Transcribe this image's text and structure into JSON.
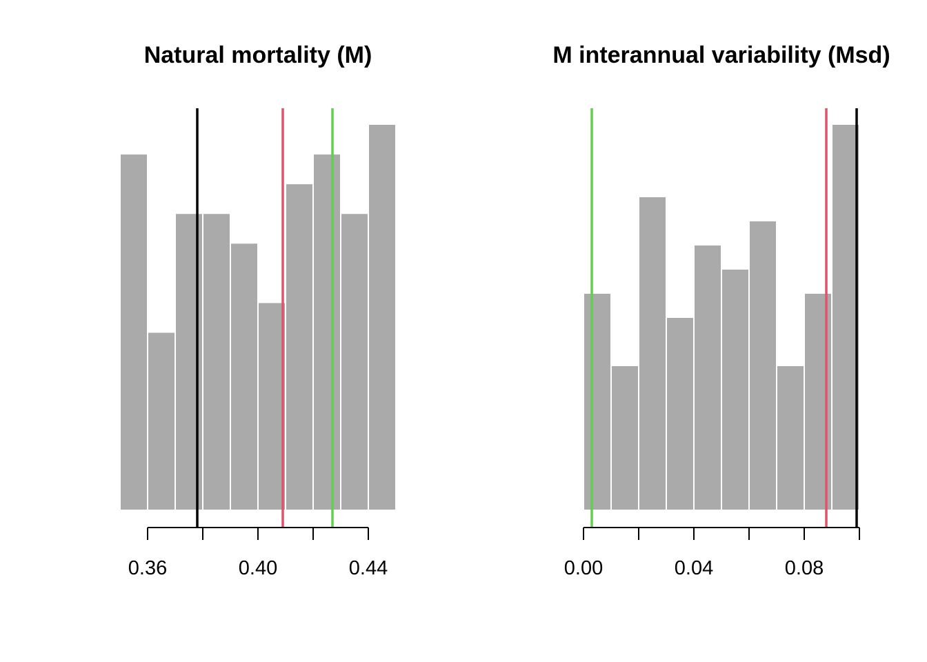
{
  "colors": {
    "bar": "#AAAAAA",
    "bar_border": "#FFFFFF",
    "black_line": "#000000",
    "red_line": "#DF536B",
    "green_line": "#61D04F"
  },
  "chart_data": [
    {
      "type": "histogram",
      "title": "Natural mortality (M)",
      "xlabel": "",
      "ylabel": "",
      "xlim": [
        0.35,
        0.45
      ],
      "ylim": [
        0,
        13
      ],
      "bin_edges": [
        0.35,
        0.36,
        0.37,
        0.38,
        0.39,
        0.4,
        0.41,
        0.42,
        0.43,
        0.44,
        0.45
      ],
      "counts": [
        12,
        6,
        10,
        10,
        9,
        7,
        11,
        12,
        10,
        13
      ],
      "x_ticks": [
        0.36,
        0.38,
        0.4,
        0.42,
        0.44
      ],
      "x_tick_labels": [
        "0.36",
        "",
        "0.40",
        "",
        "0.44"
      ],
      "vlines": [
        {
          "x": 0.378,
          "color": "black"
        },
        {
          "x": 0.409,
          "color": "red"
        },
        {
          "x": 0.427,
          "color": "green"
        }
      ]
    },
    {
      "type": "histogram",
      "title": "M interannual variability (Msd)",
      "xlabel": "",
      "ylabel": "",
      "xlim": [
        0.0,
        0.1
      ],
      "ylim": [
        0,
        16
      ],
      "bin_edges": [
        0.0,
        0.01,
        0.02,
        0.03,
        0.04,
        0.05,
        0.06,
        0.07,
        0.08,
        0.09,
        0.1
      ],
      "counts": [
        9,
        6,
        13,
        8,
        11,
        10,
        12,
        6,
        9,
        16
      ],
      "x_ticks": [
        0.0,
        0.02,
        0.04,
        0.06,
        0.08,
        0.1
      ],
      "x_tick_labels": [
        "0.00",
        "",
        "0.04",
        "",
        "0.08",
        ""
      ],
      "vlines": [
        {
          "x": 0.003,
          "color": "green"
        },
        {
          "x": 0.088,
          "color": "red"
        },
        {
          "x": 0.099,
          "color": "black"
        }
      ]
    }
  ]
}
